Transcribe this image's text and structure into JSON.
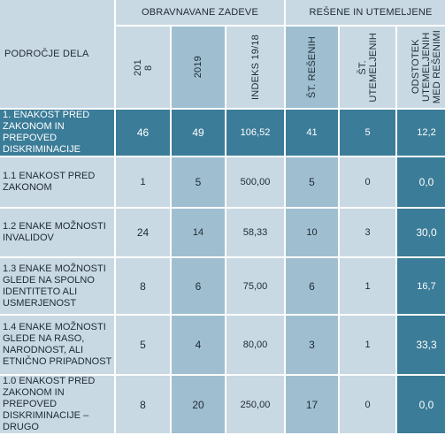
{
  "header": {
    "group_a": "OBRAVNAVANE ZADEVE",
    "group_b": "REŠENE IN UTEMELJENE",
    "area": "PODROČJE DELA",
    "col_2018": "201\n8",
    "col_2019": "2019",
    "col_index": "INDEKS 19/18",
    "col_resolved": "ŠT. REŠENIH",
    "col_justified": "ŠT.\nUTEMELJENIH",
    "col_pct": "ODSTOTEK\nUTEMELJENIH\nMED REŠENIMI"
  },
  "rows": [
    {
      "label": "1. ENAKOST PRED ZAKONOM IN PREPOVED DISKRIMINACIJE",
      "y2018": "46",
      "y2019": "49",
      "index": "106,52",
      "resolved": "41",
      "justified": "5",
      "pct": "12,2"
    },
    {
      "label": "1.1 ENAKOST PRED ZAKONOM",
      "y2018": "1",
      "y2019": "5",
      "index": "500,00",
      "resolved": "5",
      "justified": "0",
      "pct": "0,0"
    },
    {
      "label": "1.2 ENAKE MOŽNOSTI INVALIDOV",
      "y2018": "24",
      "y2019": "14",
      "index": "58,33",
      "resolved": "10",
      "justified": "3",
      "pct": "30,0"
    },
    {
      "label": "1.3 ENAKE MOŽNOSTI GLEDE NA SPOLNO IDENTITETO ALI USMERJENOST",
      "y2018": "8",
      "y2019": "6",
      "index": "75,00",
      "resolved": "6",
      "justified": "1",
      "pct": "16,7"
    },
    {
      "label": "1.4 ENAKE MOŽNOSTI GLEDE NA RASO, NARODNOST, ALI ETNIČNO PRIPADNOST",
      "y2018": "5",
      "y2019": "4",
      "index": "80,00",
      "resolved": "3",
      "justified": "1",
      "pct": "33,3"
    },
    {
      "label": "1.0 ENAKOST PRED ZAKONOM IN PREPOVED DISKRIMINACIJE – DRUGO",
      "y2018": "8",
      "y2019": "20",
      "index": "250,00",
      "resolved": "17",
      "justified": "0",
      "pct": "0,0"
    }
  ]
}
